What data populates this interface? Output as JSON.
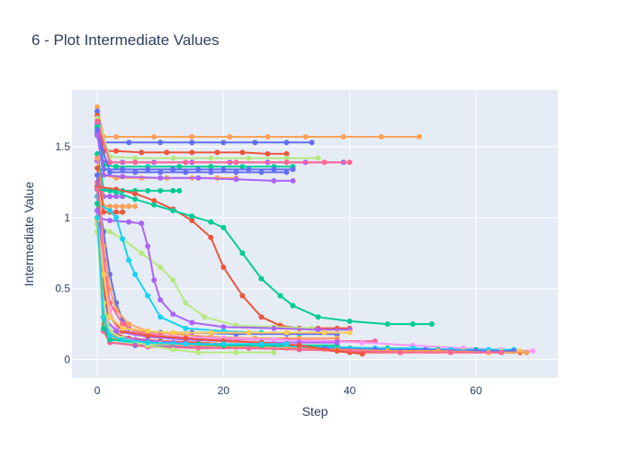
{
  "chart_data": {
    "type": "line",
    "title": "6 - Plot Intermediate Values",
    "xlabel": "Step",
    "ylabel": "Intermediate Value",
    "xlim": [
      -4,
      73
    ],
    "ylim": [
      -0.13,
      1.9
    ],
    "xticks": [
      0,
      20,
      40,
      60
    ],
    "yticks": [
      0,
      0.5,
      1,
      1.5
    ],
    "ytick_labels": [
      "0",
      "0.5",
      "1",
      "1.5"
    ],
    "grid": true,
    "legend": "none",
    "background": "#e5ecf6",
    "colors": [
      "#636efa",
      "#ef553b",
      "#00cc96",
      "#ab63fa",
      "#ffa15a",
      "#19d3f3",
      "#ff6692",
      "#b6e880",
      "#ff97ff",
      "#fecb52"
    ],
    "series": [
      {
        "color": "#ffa15a",
        "x": [
          0,
          1,
          3,
          9,
          15,
          21,
          27,
          33,
          39,
          45,
          51
        ],
        "y": [
          1.78,
          1.57,
          1.57,
          1.57,
          1.57,
          1.57,
          1.57,
          1.57,
          1.57,
          1.57,
          1.57
        ]
      },
      {
        "color": "#636efa",
        "x": [
          0,
          1,
          5,
          10,
          15,
          20,
          25,
          30,
          34
        ],
        "y": [
          1.75,
          1.53,
          1.53,
          1.53,
          1.53,
          1.53,
          1.53,
          1.53,
          1.53
        ]
      },
      {
        "color": "#ef553b",
        "x": [
          0,
          1,
          3,
          7,
          11,
          15,
          19,
          23,
          27,
          30
        ],
        "y": [
          1.72,
          1.47,
          1.47,
          1.46,
          1.46,
          1.46,
          1.46,
          1.46,
          1.45,
          1.45
        ]
      },
      {
        "color": "#b6e880",
        "x": [
          0,
          2,
          6,
          12,
          18,
          24,
          30,
          35
        ],
        "y": [
          1.7,
          1.43,
          1.42,
          1.42,
          1.42,
          1.42,
          1.42,
          1.42
        ]
      },
      {
        "color": "#ab63fa",
        "x": [
          0,
          1,
          2,
          4,
          9,
          15,
          21,
          27,
          33,
          39
        ],
        "y": [
          1.66,
          1.39,
          1.39,
          1.39,
          1.39,
          1.39,
          1.39,
          1.39,
          1.39,
          1.39
        ]
      },
      {
        "color": "#ff6692",
        "x": [
          0,
          2,
          6,
          14,
          22,
          30,
          36,
          40
        ],
        "y": [
          1.68,
          1.39,
          1.39,
          1.39,
          1.39,
          1.39,
          1.39,
          1.39
        ]
      },
      {
        "color": "#00cc96",
        "x": [
          0,
          1,
          3,
          8,
          13,
          18,
          23,
          28,
          31
        ],
        "y": [
          1.64,
          1.37,
          1.36,
          1.36,
          1.36,
          1.36,
          1.36,
          1.36,
          1.36
        ]
      },
      {
        "color": "#636efa",
        "x": [
          0,
          1,
          4,
          8,
          12,
          16,
          20,
          24,
          28,
          31
        ],
        "y": [
          1.62,
          1.34,
          1.34,
          1.34,
          1.34,
          1.34,
          1.34,
          1.34,
          1.34,
          1.34
        ]
      },
      {
        "color": "#636efa",
        "x": [
          0,
          2,
          6,
          10,
          14,
          18,
          22,
          26,
          30
        ],
        "y": [
          1.6,
          1.32,
          1.32,
          1.32,
          1.32,
          1.32,
          1.32,
          1.32,
          1.32
        ]
      },
      {
        "color": "#ffa15a",
        "x": [
          0,
          1,
          3,
          7,
          11,
          15,
          19,
          22
        ],
        "y": [
          1.58,
          1.3,
          1.28,
          1.28,
          1.28,
          1.28,
          1.28,
          1.28
        ]
      },
      {
        "color": "#ab63fa",
        "x": [
          0,
          1,
          4,
          10,
          16,
          22,
          28,
          31
        ],
        "y": [
          1.58,
          1.3,
          1.29,
          1.28,
          1.28,
          1.27,
          1.26,
          1.26
        ]
      },
      {
        "color": "#00cc96",
        "x": [
          0,
          1,
          2,
          4,
          6,
          8,
          10,
          12,
          13
        ],
        "y": [
          1.45,
          1.2,
          1.19,
          1.19,
          1.19,
          1.19,
          1.19,
          1.19,
          1.19
        ]
      },
      {
        "color": "#ab63fa",
        "x": [
          0,
          1,
          2,
          3,
          4
        ],
        "y": [
          1.4,
          1.15,
          1.15,
          1.15,
          1.15
        ]
      },
      {
        "color": "#ffa15a",
        "x": [
          0,
          1,
          2,
          3,
          4,
          5,
          6
        ],
        "y": [
          1.42,
          1.08,
          1.08,
          1.08,
          1.08,
          1.08,
          1.08
        ]
      },
      {
        "color": "#ef553b",
        "x": [
          0,
          1,
          2,
          3,
          4
        ],
        "y": [
          1.35,
          1.04,
          1.04,
          1.04,
          1.04
        ]
      },
      {
        "color": "#ef553b",
        "x": [
          0,
          3,
          6,
          9,
          12,
          15,
          18,
          20,
          23,
          26,
          29,
          32,
          35,
          38,
          40
        ],
        "y": [
          1.22,
          1.2,
          1.17,
          1.12,
          1.06,
          0.98,
          0.86,
          0.65,
          0.45,
          0.3,
          0.24,
          0.22,
          0.22,
          0.22,
          0.22
        ]
      },
      {
        "color": "#00cc96",
        "x": [
          0,
          3,
          6,
          9,
          12,
          15,
          18,
          20,
          23,
          26,
          29,
          31,
          35,
          40,
          46,
          50,
          53
        ],
        "y": [
          1.2,
          1.18,
          1.13,
          1.09,
          1.05,
          1.01,
          0.97,
          0.93,
          0.75,
          0.57,
          0.45,
          0.38,
          0.3,
          0.27,
          0.25,
          0.25,
          0.25
        ]
      },
      {
        "color": "#b6e880",
        "x": [
          0,
          2,
          4,
          7,
          10,
          12,
          14,
          17,
          22,
          28,
          34
        ],
        "y": [
          0.95,
          0.9,
          0.85,
          0.75,
          0.65,
          0.56,
          0.4,
          0.3,
          0.24,
          0.23,
          0.22
        ]
      },
      {
        "color": "#ab63fa",
        "x": [
          0,
          2,
          5,
          7,
          8,
          9,
          10,
          12,
          15,
          20,
          28,
          35,
          40
        ],
        "y": [
          1.0,
          0.98,
          0.97,
          0.96,
          0.8,
          0.56,
          0.42,
          0.32,
          0.26,
          0.23,
          0.22,
          0.21,
          0.21
        ]
      },
      {
        "color": "#19d3f3",
        "x": [
          0,
          2,
          3,
          4,
          5,
          6,
          8,
          10,
          14,
          20,
          26,
          32,
          38
        ],
        "y": [
          1.1,
          1.05,
          1.0,
          0.85,
          0.7,
          0.6,
          0.45,
          0.3,
          0.22,
          0.2,
          0.19,
          0.18,
          0.18
        ]
      },
      {
        "color": "#636efa",
        "x": [
          0,
          1,
          2,
          3,
          4,
          5,
          6,
          10,
          15,
          22,
          30,
          38
        ],
        "y": [
          1.2,
          0.9,
          0.6,
          0.4,
          0.28,
          0.22,
          0.2,
          0.19,
          0.19,
          0.18,
          0.18,
          0.18
        ]
      },
      {
        "color": "#ffa15a",
        "x": [
          0,
          1,
          2,
          3,
          5,
          8,
          12,
          18,
          25,
          32,
          38
        ],
        "y": [
          1.3,
          0.8,
          0.5,
          0.35,
          0.25,
          0.2,
          0.18,
          0.16,
          0.15,
          0.15,
          0.15
        ]
      },
      {
        "color": "#ff6692",
        "x": [
          0,
          1,
          2,
          4,
          6,
          10,
          16,
          22,
          30,
          38,
          44
        ],
        "y": [
          1.25,
          0.7,
          0.4,
          0.25,
          0.2,
          0.17,
          0.15,
          0.14,
          0.14,
          0.13,
          0.13
        ]
      },
      {
        "color": "#ff97ff",
        "x": [
          0,
          1,
          2,
          3,
          6,
          12,
          20,
          28,
          36,
          42,
          50,
          58,
          64,
          69
        ],
        "y": [
          1.15,
          0.6,
          0.35,
          0.22,
          0.18,
          0.16,
          0.15,
          0.14,
          0.13,
          0.12,
          0.1,
          0.08,
          0.07,
          0.06
        ]
      },
      {
        "color": "#ef553b",
        "x": [
          0,
          1,
          2,
          5,
          10,
          16,
          24,
          32,
          40,
          48,
          56,
          62,
          67
        ],
        "y": [
          1.1,
          0.4,
          0.2,
          0.15,
          0.13,
          0.12,
          0.1,
          0.08,
          0.05,
          0.05,
          0.05,
          0.05,
          0.05
        ]
      },
      {
        "color": "#00cc96",
        "x": [
          0,
          1,
          2,
          5,
          10,
          16,
          24,
          32,
          40,
          46,
          54,
          60,
          66
        ],
        "y": [
          1.2,
          0.3,
          0.15,
          0.13,
          0.12,
          0.11,
          0.1,
          0.09,
          0.08,
          0.08,
          0.07,
          0.07,
          0.07
        ]
      },
      {
        "color": "#ab63fa",
        "x": [
          0,
          1,
          2,
          6,
          12,
          20,
          28,
          36,
          44,
          52,
          58,
          64,
          68
        ],
        "y": [
          1.05,
          0.5,
          0.18,
          0.14,
          0.12,
          0.1,
          0.09,
          0.08,
          0.07,
          0.06,
          0.06,
          0.05,
          0.05
        ]
      },
      {
        "color": "#fecb52",
        "x": [
          0,
          1,
          2,
          5,
          10,
          18,
          26,
          34,
          42,
          50,
          58,
          64,
          67
        ],
        "y": [
          1.0,
          0.35,
          0.16,
          0.13,
          0.11,
          0.1,
          0.09,
          0.08,
          0.07,
          0.06,
          0.06,
          0.06,
          0.06
        ]
      },
      {
        "color": "#19d3f3",
        "x": [
          0,
          1,
          2,
          6,
          12,
          20,
          28,
          36,
          44,
          50,
          56,
          62,
          66
        ],
        "y": [
          1.15,
          0.25,
          0.14,
          0.12,
          0.11,
          0.1,
          0.09,
          0.09,
          0.08,
          0.08,
          0.07,
          0.07,
          0.07
        ]
      },
      {
        "color": "#b6e880",
        "x": [
          0,
          1,
          2,
          6,
          12,
          20,
          28,
          36,
          44,
          52,
          58,
          64
        ],
        "y": [
          0.95,
          0.2,
          0.12,
          0.11,
          0.1,
          0.09,
          0.08,
          0.07,
          0.07,
          0.06,
          0.06,
          0.06
        ]
      },
      {
        "color": "#636efa",
        "x": [
          0,
          1,
          2,
          6,
          12,
          20,
          28,
          36,
          44,
          52,
          60,
          66
        ],
        "y": [
          1.3,
          0.3,
          0.12,
          0.1,
          0.09,
          0.09,
          0.08,
          0.08,
          0.07,
          0.07,
          0.06,
          0.06
        ]
      },
      {
        "color": "#ffa15a",
        "x": [
          0,
          1,
          3,
          8,
          14,
          22,
          30,
          38,
          46,
          54,
          62,
          68
        ],
        "y": [
          1.1,
          0.25,
          0.15,
          0.12,
          0.1,
          0.09,
          0.08,
          0.07,
          0.06,
          0.06,
          0.05,
          0.05
        ]
      },
      {
        "color": "#ff6692",
        "x": [
          0,
          1,
          2,
          8,
          16,
          24,
          32,
          40,
          48,
          56,
          64
        ],
        "y": [
          1.2,
          0.2,
          0.12,
          0.09,
          0.08,
          0.08,
          0.07,
          0.06,
          0.05,
          0.05,
          0.05
        ]
      },
      {
        "color": "#00cc96",
        "x": [
          0,
          1,
          2,
          8,
          14,
          20,
          26,
          32,
          38
        ],
        "y": [
          1.1,
          0.22,
          0.14,
          0.12,
          0.11,
          0.1,
          0.1,
          0.1,
          0.1
        ]
      },
      {
        "color": "#ab63fa",
        "x": [
          0,
          1,
          3,
          8,
          14,
          20,
          26,
          32,
          38
        ],
        "y": [
          1.05,
          0.3,
          0.2,
          0.16,
          0.14,
          0.13,
          0.12,
          0.12,
          0.12
        ]
      },
      {
        "color": "#ef553b",
        "x": [
          0,
          1,
          2,
          4,
          8,
          14,
          20,
          26,
          32,
          38,
          42
        ],
        "y": [
          1.0,
          0.5,
          0.3,
          0.2,
          0.17,
          0.15,
          0.13,
          0.12,
          0.1,
          0.06,
          0.04
        ]
      },
      {
        "color": "#b6e880",
        "x": [
          0,
          1,
          2,
          4,
          8,
          12,
          16,
          22,
          28
        ],
        "y": [
          0.9,
          0.4,
          0.2,
          0.15,
          0.1,
          0.07,
          0.05,
          0.05,
          0.05
        ]
      },
      {
        "color": "#fecb52",
        "x": [
          0,
          1,
          2,
          4,
          8,
          12,
          18,
          24,
          30,
          36,
          40
        ],
        "y": [
          0.98,
          0.6,
          0.3,
          0.22,
          0.2,
          0.19,
          0.19,
          0.19,
          0.19,
          0.19,
          0.19
        ]
      },
      {
        "color": "#19d3f3",
        "x": [
          0,
          1,
          2,
          4,
          8,
          14,
          20,
          26,
          30
        ],
        "y": [
          1.0,
          0.3,
          0.17,
          0.14,
          0.12,
          0.11,
          0.11,
          0.11,
          0.11
        ]
      }
    ]
  }
}
